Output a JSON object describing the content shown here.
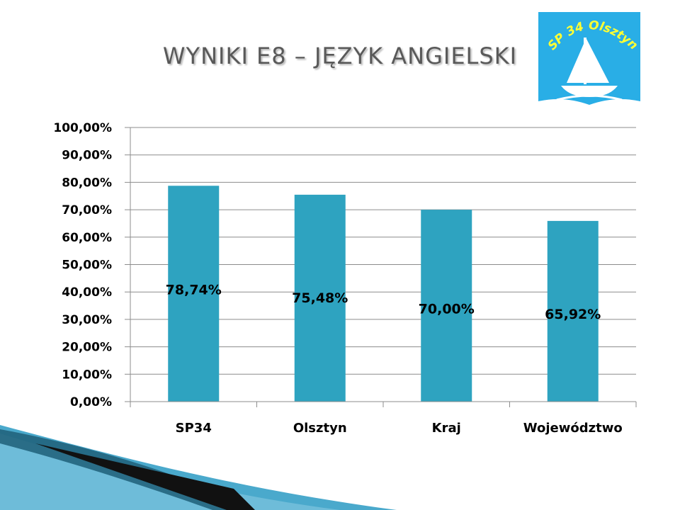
{
  "slide": {
    "title": "WYNIKI E8 – JĘZYK ANGIELSKI"
  },
  "logo": {
    "text": "SP 34 Olsztyn",
    "background": "#29aee6"
  },
  "chart_data": {
    "type": "bar",
    "title": "",
    "xlabel": "",
    "ylabel": "",
    "categories": [
      "SP34",
      "Olsztyn",
      "Kraj",
      "Województwo"
    ],
    "values": [
      78.74,
      75.48,
      70.0,
      65.92
    ],
    "value_labels": [
      "78,74%",
      "75,48%",
      "70,00%",
      "65,92%"
    ],
    "ylim": [
      0,
      100
    ],
    "yticks": [
      0,
      10,
      20,
      30,
      40,
      50,
      60,
      70,
      80,
      90,
      100
    ],
    "ytick_labels": [
      "0,00%",
      "10,00%",
      "20,00%",
      "30,00%",
      "40,00%",
      "50,00%",
      "60,00%",
      "70,00%",
      "80,00%",
      "90,00%",
      "100,00%"
    ],
    "grid": true,
    "legend": "none",
    "bar_color": "#2ea3c0"
  }
}
